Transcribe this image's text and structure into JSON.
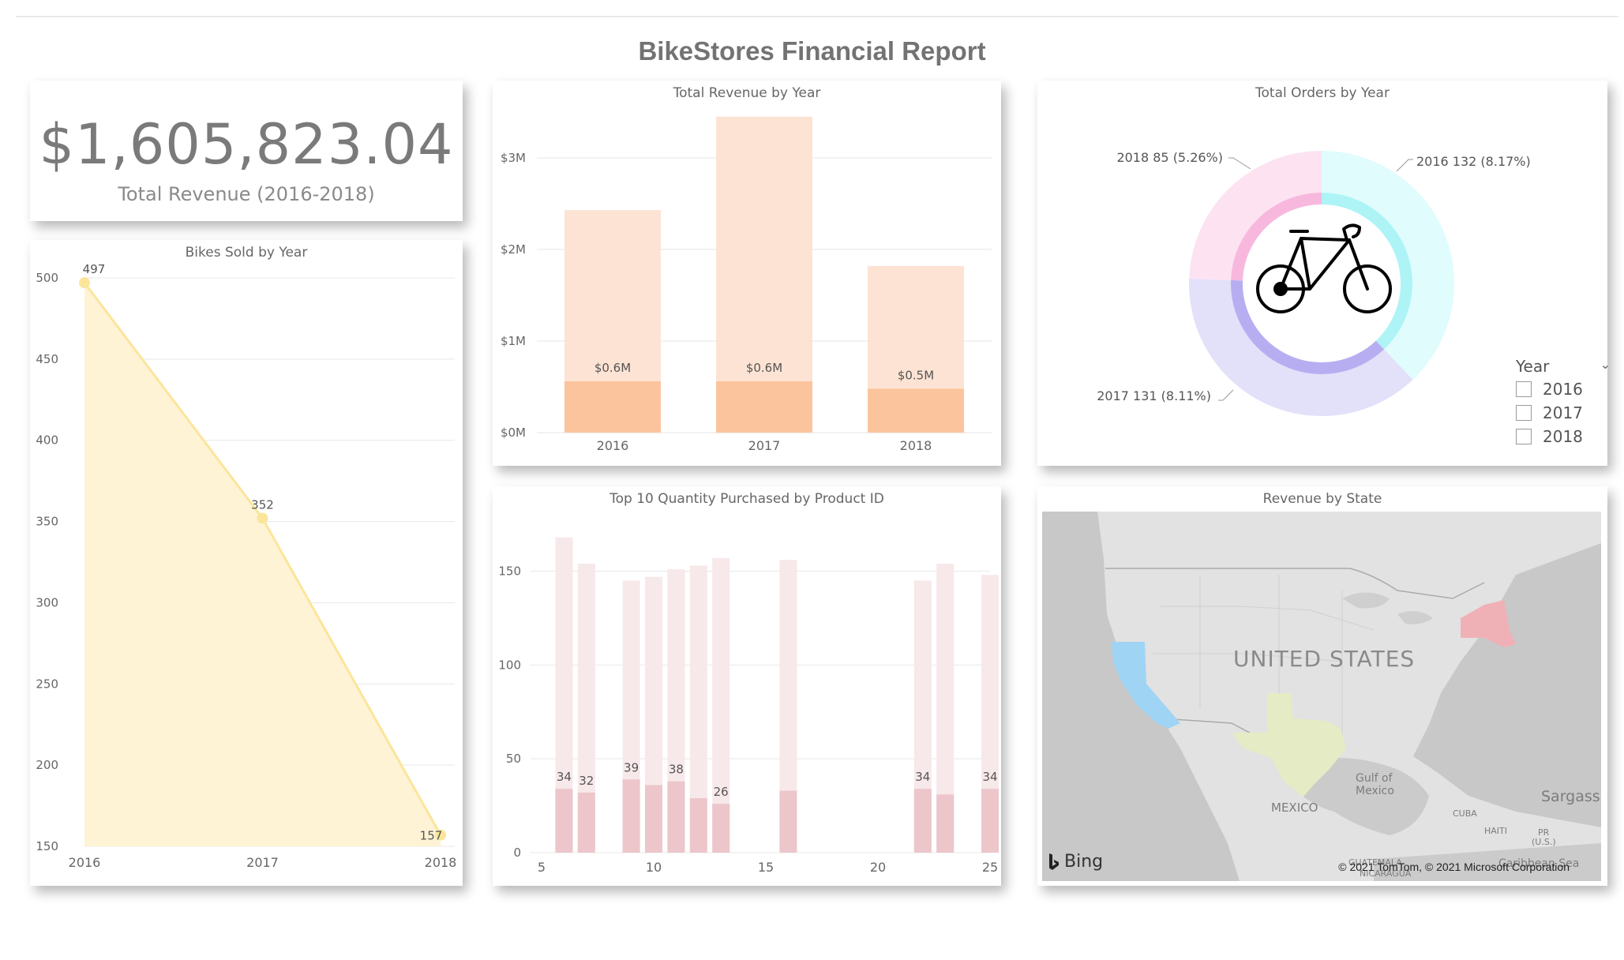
{
  "report_title": "BikeStores Financial Report",
  "kpi": {
    "value": "$1,605,823.04",
    "label": "Total Revenue (2016-2018)"
  },
  "titles": {
    "revenue_by_year": "Total Revenue by Year",
    "orders_by_year": "Total Orders by Year",
    "bikes_sold": "Bikes Sold by Year",
    "top10": "Top 10 Quantity Purchased by Product ID",
    "revenue_by_state": "Revenue by State"
  },
  "legend": {
    "title": "Year",
    "items": [
      "2016",
      "2017",
      "2018"
    ]
  },
  "map": {
    "country_label": "UNITED STATES",
    "labels": [
      "MEXICO",
      "Gulf of",
      "Mexico",
      "CUBA",
      "HAITI",
      "PR",
      "(U.S.)",
      "Sargass",
      "GUATEMALA",
      "NICARAGUA",
      "Caribbean Sea"
    ],
    "brand": "Bing",
    "attribution": "© 2021 TomTom, © 2021 Microsoft Corporation"
  },
  "chart_data": [
    {
      "id": "revenue_by_year",
      "type": "bar",
      "categories": [
        "2016",
        "2017",
        "2018"
      ],
      "series": [
        {
          "values": [
            2.43,
            3.45,
            1.82
          ],
          "color": "#fde3d3"
        },
        {
          "values": [
            0.56,
            0.56,
            0.48
          ],
          "color": "#fbc49d"
        }
      ],
      "data_labels": [
        "$0.6M",
        "$0.6M",
        "$0.5M"
      ],
      "yticks": [
        "$0M",
        "$1M",
        "$2M",
        "$3M"
      ],
      "ylim": [
        0,
        3.5
      ]
    },
    {
      "id": "orders_by_year",
      "type": "pie",
      "slices": [
        {
          "label": "2016 132 (8.17%)",
          "value": 132,
          "outer_color": "#e0fcfc",
          "inner_color": "#aef4f6"
        },
        {
          "label": "2017 131 (8.11%)",
          "value": 131,
          "outer_color": "#e3e0fa",
          "inner_color": "#b7aef2"
        },
        {
          "label": "2018 85 (5.26%)",
          "value": 85,
          "outer_color": "#fde3f2",
          "inner_color": "#f8b8de"
        }
      ],
      "center_icon": "bicycle-icon"
    },
    {
      "id": "bikes_sold",
      "type": "area",
      "x": [
        "2016",
        "2017",
        "2018"
      ],
      "values": [
        497,
        352,
        157
      ],
      "data_labels": [
        "497",
        "352",
        "157"
      ],
      "yticks": [
        "150",
        "200",
        "250",
        "300",
        "350",
        "400",
        "450",
        "500"
      ],
      "ylim": [
        150,
        500
      ],
      "color": "#fbe59b"
    },
    {
      "id": "top10",
      "type": "bar",
      "x": [
        6,
        7,
        9,
        10,
        11,
        12,
        13,
        16,
        22,
        23,
        25
      ],
      "series": [
        {
          "values": [
            168,
            154,
            145,
            147,
            151,
            153,
            157,
            156,
            145,
            154,
            148
          ],
          "color": "#f7e8ea"
        },
        {
          "values": [
            34,
            32,
            39,
            36,
            38,
            29,
            26,
            33,
            34,
            31,
            34
          ],
          "color": "#ecc6ca"
        }
      ],
      "data_labels": [
        "34",
        "32",
        "39",
        "",
        "38",
        "",
        "26",
        "",
        "34",
        "",
        "34"
      ],
      "xticks": [
        "5",
        "10",
        "15",
        "20",
        "25"
      ],
      "yticks": [
        "0",
        "50",
        "100",
        "150"
      ],
      "xlim": [
        5,
        25
      ],
      "ylim": [
        0,
        170
      ]
    },
    {
      "id": "revenue_by_state",
      "type": "map",
      "regions": [
        {
          "name": "California",
          "color": "#9fd4f5"
        },
        {
          "name": "Texas",
          "color": "#e5ebc4"
        },
        {
          "name": "New York",
          "color": "#f0b1b6"
        }
      ]
    }
  ]
}
